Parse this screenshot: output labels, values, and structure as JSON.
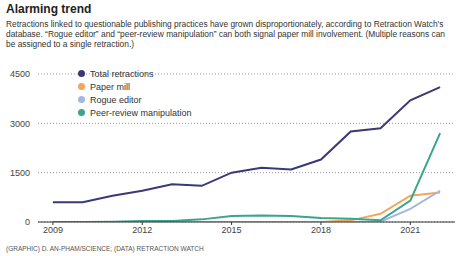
{
  "chart_data": {
    "type": "line",
    "title": "Alarming trend",
    "subtitle": "Retractions linked to questionable publishing practices have grown disproportionately, according to Retraction Watch's database. “Rogue editor” and “peer-review manipulation” can both signal paper mill involvement. (Multiple reasons can be assigned to a single retraction.)",
    "source": "(GRAPHIC) D. AN-PHAM/SCIENCE; (DATA) RETRACTION WATCH",
    "x": [
      2009,
      2010,
      2011,
      2012,
      2013,
      2014,
      2015,
      2016,
      2017,
      2018,
      2019,
      2020,
      2021,
      2022
    ],
    "series": [
      {
        "name": "Total retractions",
        "color": "#3b3878",
        "values": [
          600,
          600,
          800,
          950,
          1150,
          1100,
          1500,
          1650,
          1600,
          1900,
          2750,
          2850,
          3700,
          4100
        ]
      },
      {
        "name": "Paper mill",
        "color": "#f5a55a",
        "values": [
          0,
          0,
          0,
          0,
          0,
          0,
          0,
          0,
          0,
          0,
          50,
          250,
          800,
          900
        ]
      },
      {
        "name": "Rogue editor",
        "color": "#a3b6e3",
        "values": [
          0,
          0,
          0,
          0,
          0,
          0,
          0,
          0,
          0,
          0,
          0,
          10,
          400,
          950
        ]
      },
      {
        "name": "Peer-review manipulation",
        "color": "#3aa58f",
        "values": [
          0,
          0,
          10,
          30,
          30,
          80,
          180,
          200,
          180,
          120,
          100,
          50,
          650,
          2700
        ]
      }
    ],
    "xlim": [
      2008.5,
      2022.5
    ],
    "xticks": [
      2009,
      2012,
      2015,
      2018,
      2021
    ],
    "ylim": [
      0,
      4500
    ],
    "yticks": [
      0,
      1500,
      3000,
      4500
    ],
    "grid": true,
    "legend": "upper left"
  }
}
